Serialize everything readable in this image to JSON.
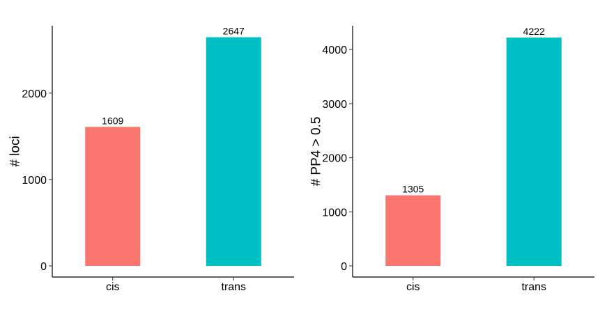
{
  "chart_data": [
    {
      "type": "bar",
      "categories": [
        "cis",
        "trans"
      ],
      "values": [
        1609,
        2647
      ],
      "data_labels": [
        "1609",
        "2647"
      ],
      "colors": [
        "#F8766D",
        "#00BFC4"
      ],
      "xlabel": "",
      "ylabel": "# loci",
      "ylim": [
        0,
        2780
      ],
      "yticks": [
        0,
        1000,
        2000
      ],
      "ytick_labels": [
        "0",
        "1000",
        "2000"
      ],
      "grid": false,
      "legend": "none"
    },
    {
      "type": "bar",
      "categories": [
        "cis",
        "trans"
      ],
      "values": [
        1305,
        4222
      ],
      "data_labels": [
        "1305",
        "4222"
      ],
      "colors": [
        "#F8766D",
        "#00BFC4"
      ],
      "xlabel": "",
      "ylabel": "# PP4 > 0.5",
      "ylim": [
        0,
        4440
      ],
      "yticks": [
        0,
        1000,
        2000,
        3000,
        4000
      ],
      "ytick_labels": [
        "0",
        "1000",
        "2000",
        "3000",
        "4000"
      ],
      "grid": false,
      "legend": "none"
    }
  ]
}
